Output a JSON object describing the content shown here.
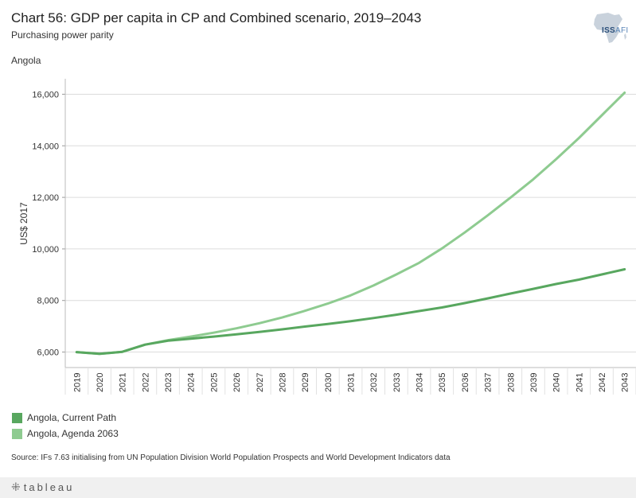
{
  "header": {
    "title": "Chart 56: GDP per capita in CP and Combined scenario, 2019–2043",
    "subtitle": "Purchasing power parity",
    "country": "Angola"
  },
  "logo": {
    "text_bold": "ISS",
    "text_light": "AFI"
  },
  "legend": [
    {
      "label": "Angola, Current Path",
      "color": "#58a75f"
    },
    {
      "label": "Angola, Agenda 2063",
      "color": "#8ecb90"
    }
  ],
  "source": "Source: IFs 7.63 initialising from UN Population Division World Population Prospects and World Development Indicators data",
  "footer": {
    "brand": "tableau"
  },
  "chart_data": {
    "type": "line",
    "title": "Chart 56: GDP per capita in CP and Combined scenario, 2019–2043",
    "xlabel": "",
    "ylabel": "US$ 2017",
    "ylim": [
      5400,
      16600
    ],
    "yticks": [
      6000,
      8000,
      10000,
      12000,
      14000,
      16000
    ],
    "ytick_labels": [
      "6,000",
      "8,000",
      "10,000",
      "12,000",
      "14,000",
      "16,000"
    ],
    "grid": true,
    "x": [
      "2019",
      "2020",
      "2021",
      "2022",
      "2023",
      "2024",
      "2025",
      "2026",
      "2027",
      "2028",
      "2029",
      "2030",
      "2031",
      "2032",
      "2033",
      "2034",
      "2035",
      "2036",
      "2037",
      "2038",
      "2039",
      "2040",
      "2041",
      "2042",
      "2043"
    ],
    "series": [
      {
        "name": "Angola, Current Path",
        "color": "#58a75f",
        "values": [
          6000,
          5930,
          6010,
          6290,
          6440,
          6520,
          6600,
          6690,
          6780,
          6880,
          6990,
          7090,
          7200,
          7320,
          7450,
          7590,
          7730,
          7900,
          8080,
          8270,
          8450,
          8640,
          8810,
          9010,
          9210
        ]
      },
      {
        "name": "Angola, Agenda 2063",
        "color": "#8ecb90",
        "values": [
          6000,
          5930,
          6010,
          6290,
          6460,
          6600,
          6750,
          6920,
          7120,
          7340,
          7600,
          7880,
          8200,
          8580,
          9010,
          9460,
          10020,
          10640,
          11300,
          11990,
          12700,
          13480,
          14300,
          15180,
          16060
        ]
      }
    ]
  }
}
